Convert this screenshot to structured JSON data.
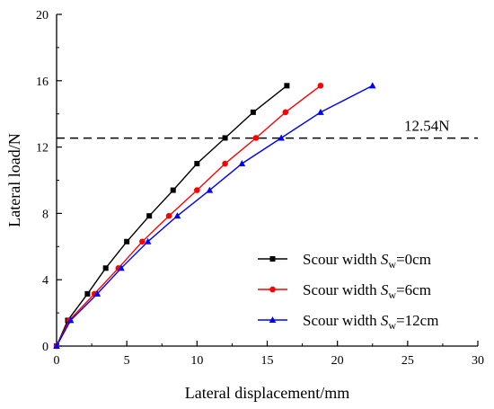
{
  "chart_data": {
    "type": "line",
    "xlabel": "Lateral displacement/mm",
    "ylabel": "Lateral load/N",
    "xlim": [
      0,
      30
    ],
    "ylim": [
      0,
      20
    ],
    "xticks": [
      0,
      5,
      10,
      15,
      20,
      25,
      30
    ],
    "yticks": [
      0,
      4,
      8,
      12,
      16,
      20
    ],
    "grid": false,
    "legend_position": "bottom-right",
    "annotation": {
      "text": "12.54N",
      "y": 12.54,
      "style": "dashed"
    },
    "series": [
      {
        "name": "Scour width Sw=0cm",
        "legend": {
          "prefix": "Scour width ",
          "var": "S",
          "sub": "w",
          "suffix": "=0cm"
        },
        "color": "#000000",
        "marker": "square",
        "x": [
          0,
          0.8,
          2.2,
          3.5,
          5.0,
          6.6,
          8.3,
          10.0,
          12.0,
          14.0,
          16.4
        ],
        "y": [
          0,
          1.55,
          3.15,
          4.7,
          6.3,
          7.85,
          9.4,
          11.0,
          12.55,
          14.1,
          15.7
        ]
      },
      {
        "name": "Scour width Sw=6cm",
        "legend": {
          "prefix": "Scour width ",
          "var": "S",
          "sub": "w",
          "suffix": "=6cm"
        },
        "color": "#ff0000",
        "marker": "circle",
        "x": [
          0,
          0.9,
          2.7,
          4.4,
          6.1,
          8.0,
          10.0,
          12.0,
          14.2,
          16.3,
          18.8
        ],
        "y": [
          0,
          1.55,
          3.15,
          4.7,
          6.3,
          7.85,
          9.4,
          11.0,
          12.55,
          14.1,
          15.7
        ]
      },
      {
        "name": "Scour width Sw=12cm",
        "legend": {
          "prefix": "Scour width ",
          "var": "S",
          "sub": "w",
          "suffix": "=12cm"
        },
        "color": "#0000ff",
        "marker": "triangle",
        "x": [
          0,
          1.0,
          2.9,
          4.6,
          6.5,
          8.6,
          10.9,
          13.2,
          16.0,
          18.8,
          22.5
        ],
        "y": [
          0,
          1.55,
          3.15,
          4.7,
          6.3,
          7.85,
          9.4,
          11.0,
          12.55,
          14.1,
          15.7
        ]
      }
    ]
  }
}
